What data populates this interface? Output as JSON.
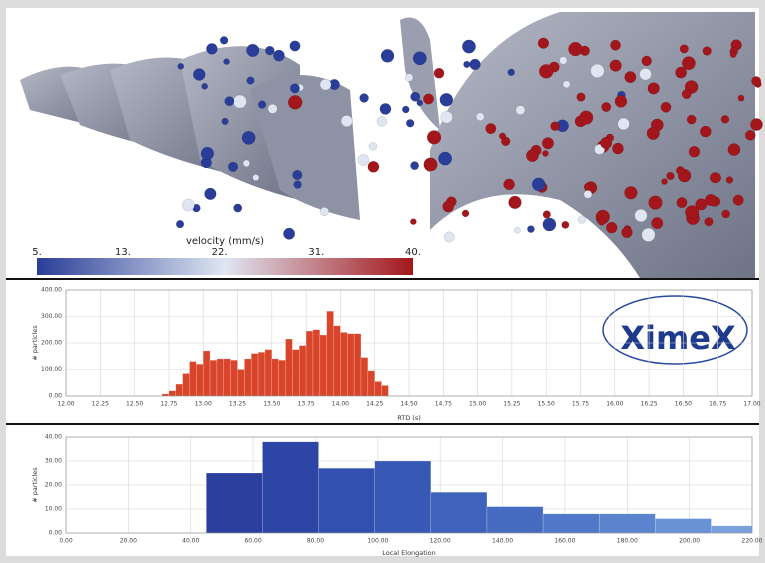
{
  "render": {
    "colorbar": {
      "title": "velocity (mm/s)",
      "colors": [
        "#2a3d98",
        "#dfe6f2",
        "#a3161b"
      ],
      "range": [
        5,
        40
      ],
      "ticks": [
        {
          "value": 5,
          "label": "5."
        },
        {
          "value": 13,
          "label": "13."
        },
        {
          "value": 22,
          "label": "22."
        },
        {
          "value": 31,
          "label": "31."
        },
        {
          "value": 40,
          "label": "40."
        }
      ]
    }
  },
  "logo": "XimeX",
  "chart_data": [
    {
      "type": "histogram",
      "xlabel": "RTD (s)",
      "ylabel": "# particles",
      "color": "#d8452b",
      "grid": true,
      "bins": [
        12.7,
        12.75,
        12.8,
        12.85,
        12.9,
        12.95,
        13.0,
        13.05,
        13.1,
        13.15,
        13.2,
        13.25,
        13.3,
        13.35,
        13.4,
        13.45,
        13.5,
        13.55,
        13.6,
        13.65,
        13.7,
        13.75,
        13.8,
        13.85,
        13.9,
        13.95,
        14.0,
        14.05,
        14.1,
        14.15,
        14.2,
        14.25,
        14.3,
        14.35
      ],
      "values": [
        8,
        20,
        45,
        85,
        130,
        120,
        170,
        135,
        140,
        140,
        135,
        100,
        140,
        160,
        165,
        175,
        140,
        135,
        215,
        175,
        190,
        245,
        250,
        230,
        320,
        265,
        240,
        235,
        235,
        145,
        95,
        55,
        40
      ],
      "xlim": [
        12,
        17
      ],
      "xticks": [
        {
          "value": 12,
          "label": "12.00"
        },
        {
          "value": 12.25,
          "label": "12.25"
        },
        {
          "value": 12.5,
          "label": "12.50"
        },
        {
          "value": 12.75,
          "label": "12.75"
        },
        {
          "value": 13,
          "label": "13.00"
        },
        {
          "value": 13.25,
          "label": "13.25"
        },
        {
          "value": 13.5,
          "label": "13.50"
        },
        {
          "value": 13.75,
          "label": "13.75"
        },
        {
          "value": 14,
          "label": "14.00"
        },
        {
          "value": 14.25,
          "label": "14.25"
        },
        {
          "value": 14.5,
          "label": "14.50"
        },
        {
          "value": 14.75,
          "label": "14.75"
        },
        {
          "value": 15,
          "label": "15.00"
        },
        {
          "value": 15.25,
          "label": "15.25"
        },
        {
          "value": 15.5,
          "label": "15.50"
        },
        {
          "value": 15.75,
          "label": "15.75"
        },
        {
          "value": 16,
          "label": "16.00"
        },
        {
          "value": 16.25,
          "label": "16.25"
        },
        {
          "value": 16.5,
          "label": "16.50"
        },
        {
          "value": 16.75,
          "label": "16.75"
        },
        {
          "value": 17,
          "label": "17.00"
        }
      ],
      "ylim": [
        0,
        400
      ],
      "yticks": [
        {
          "value": 0,
          "label": "0.00"
        },
        {
          "value": 100,
          "label": "100.00"
        },
        {
          "value": 200,
          "label": "200.00"
        },
        {
          "value": 300,
          "label": "300.00"
        },
        {
          "value": 400,
          "label": "400.00"
        }
      ]
    },
    {
      "type": "histogram",
      "xlabel": "Local Elongation",
      "ylabel": "# particles",
      "grid": true,
      "colors": [
        "#2a3f9e",
        "#2d46a6",
        "#3250b0",
        "#3858b6",
        "#3f62bc",
        "#466cc2",
        "#5078c8",
        "#5b84cf",
        "#6892d6",
        "#78a0dc"
      ],
      "bins": [
        45,
        63,
        81,
        99,
        117,
        135,
        153,
        171,
        189,
        207,
        225
      ],
      "values": [
        25,
        38,
        27,
        30,
        17,
        11,
        8,
        8,
        6,
        3
      ],
      "xlim": [
        0,
        220
      ],
      "xticks": [
        {
          "value": 0,
          "label": "0.00"
        },
        {
          "value": 20,
          "label": "20.00"
        },
        {
          "value": 40,
          "label": "40.00"
        },
        {
          "value": 60,
          "label": "60.00"
        },
        {
          "value": 80,
          "label": "80.00"
        },
        {
          "value": 100,
          "label": "100.00"
        },
        {
          "value": 120,
          "label": "120.00"
        },
        {
          "value": 140,
          "label": "140.00"
        },
        {
          "value": 160,
          "label": "160.00"
        },
        {
          "value": 180,
          "label": "180.00"
        },
        {
          "value": 200,
          "label": "200.00"
        },
        {
          "value": 220,
          "label": "220.00"
        }
      ],
      "ylim": [
        0,
        40
      ],
      "yticks": [
        {
          "value": 0,
          "label": "0.00"
        },
        {
          "value": 10,
          "label": "10.00"
        },
        {
          "value": 20,
          "label": "20.00"
        },
        {
          "value": 30,
          "label": "30.00"
        },
        {
          "value": 40,
          "label": "40.00"
        }
      ]
    }
  ]
}
